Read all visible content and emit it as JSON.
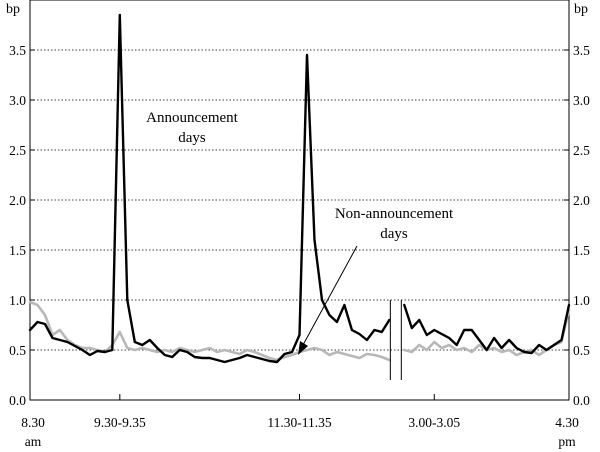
{
  "chart_data": {
    "type": "line",
    "title": "",
    "xlabel": "",
    "ylabel": "bp",
    "y_unit_left": "bp",
    "y_unit_right": "bp",
    "ylim": [
      0,
      4
    ],
    "grid": "horizontal dotted",
    "y_ticks": [
      "0.0",
      "0.5",
      "1.0",
      "1.5",
      "2.0",
      "2.5",
      "3.0",
      "3.5"
    ],
    "x_ticks": [
      {
        "label": "8.30",
        "sub": "am",
        "pos": 0
      },
      {
        "label": "9.30-9.35",
        "sub": "",
        "pos": 12
      },
      {
        "label": "11.30-11.35",
        "sub": "",
        "pos": 36
      },
      {
        "label": "3.00-3.05",
        "sub": "",
        "pos": 54
      },
      {
        "label": "4.30",
        "sub": "pm",
        "pos": 72
      }
    ],
    "x_domain": [
      0,
      72
    ],
    "break_between_slots": [
      48,
      50
    ],
    "series": [
      {
        "name": "Announcement days",
        "color": "#000000",
        "segments": [
          {
            "x": [
              0,
              1,
              2,
              3,
              4,
              5,
              6,
              7,
              8,
              9,
              10,
              11,
              12,
              13,
              14,
              15,
              16,
              17,
              18,
              19,
              20,
              21,
              22,
              23,
              24,
              25,
              26,
              27,
              28,
              29,
              30,
              31,
              32,
              33,
              34,
              35,
              36,
              37,
              38,
              39,
              40,
              41,
              42,
              43,
              44,
              45,
              46,
              47,
              48
            ],
            "y": [
              0.7,
              0.78,
              0.76,
              0.62,
              0.6,
              0.58,
              0.54,
              0.5,
              0.45,
              0.49,
              0.48,
              0.5,
              3.85,
              1.0,
              0.58,
              0.55,
              0.6,
              0.52,
              0.45,
              0.43,
              0.5,
              0.48,
              0.43,
              0.42,
              0.42,
              0.4,
              0.38,
              0.4,
              0.42,
              0.45,
              0.43,
              0.41,
              0.39,
              0.38,
              0.46,
              0.48,
              0.65,
              3.45,
              1.6,
              1.0,
              0.85,
              0.78,
              0.95,
              0.7,
              0.66,
              0.6,
              0.7,
              0.68,
              0.8
            ]
          },
          {
            "x": [
              50,
              51,
              52,
              53,
              54,
              55,
              56,
              57,
              58,
              59,
              60,
              61,
              62,
              63,
              64,
              65,
              66,
              67,
              68,
              69,
              70,
              71,
              72
            ],
            "y": [
              0.95,
              0.72,
              0.8,
              0.65,
              0.7,
              0.66,
              0.62,
              0.55,
              0.7,
              0.7,
              0.6,
              0.5,
              0.62,
              0.52,
              0.6,
              0.52,
              0.48,
              0.47,
              0.55,
              0.5,
              0.55,
              0.6,
              0.95
            ]
          }
        ]
      },
      {
        "name": "Non-announcement days",
        "color": "#b8b8b8",
        "segments": [
          {
            "x": [
              0,
              1,
              2,
              3,
              4,
              5,
              6,
              7,
              8,
              9,
              10,
              11,
              12,
              13,
              14,
              15,
              16,
              17,
              18,
              19,
              20,
              21,
              22,
              23,
              24,
              25,
              26,
              27,
              28,
              29,
              30,
              31,
              32,
              33,
              34,
              35,
              36,
              37,
              38,
              39,
              40,
              41,
              42,
              43,
              44,
              45,
              46,
              47,
              48
            ],
            "y": [
              0.98,
              0.95,
              0.85,
              0.65,
              0.7,
              0.6,
              0.55,
              0.52,
              0.52,
              0.5,
              0.48,
              0.55,
              0.68,
              0.52,
              0.5,
              0.52,
              0.5,
              0.48,
              0.5,
              0.48,
              0.52,
              0.5,
              0.48,
              0.5,
              0.52,
              0.48,
              0.5,
              0.48,
              0.46,
              0.5,
              0.48,
              0.45,
              0.42,
              0.4,
              0.43,
              0.45,
              0.48,
              0.5,
              0.52,
              0.5,
              0.45,
              0.48,
              0.46,
              0.44,
              0.42,
              0.46,
              0.45,
              0.43,
              0.4
            ]
          },
          {
            "x": [
              50,
              51,
              52,
              53,
              54,
              55,
              56,
              57,
              58,
              59,
              60,
              61,
              62,
              63,
              64,
              65,
              66,
              67,
              68,
              69,
              70,
              71,
              72
            ],
            "y": [
              0.5,
              0.48,
              0.55,
              0.5,
              0.58,
              0.52,
              0.55,
              0.5,
              0.52,
              0.48,
              0.55,
              0.5,
              0.52,
              0.48,
              0.5,
              0.45,
              0.48,
              0.5,
              0.45,
              0.5,
              0.55,
              0.58,
              0.9
            ]
          }
        ]
      }
    ],
    "annotations": [
      {
        "line1": "Announcement",
        "line2": "days"
      },
      {
        "line1": "Non-announcement",
        "line2": "days"
      }
    ]
  }
}
